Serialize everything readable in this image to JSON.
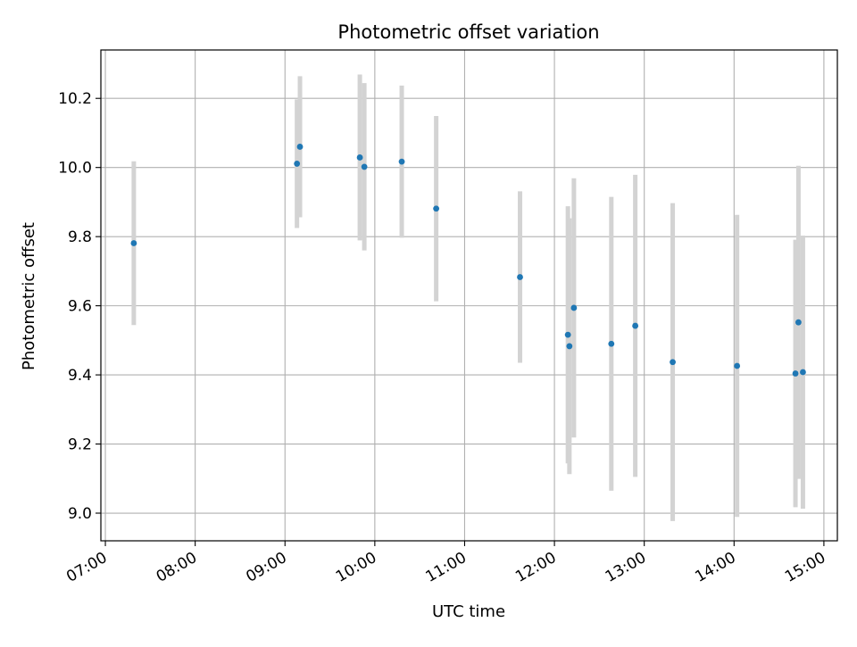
{
  "chart_data": {
    "type": "scatter",
    "title": "Photometric offset variation",
    "xlabel": "UTC time",
    "ylabel": "Photometric offset",
    "grid": true,
    "legend": "none",
    "xlim_hours": [
      6.95,
      15.15
    ],
    "ylim": [
      8.92,
      10.34
    ],
    "x_ticks": [
      {
        "hour": 7,
        "label": "07:00"
      },
      {
        "hour": 8,
        "label": "08:00"
      },
      {
        "hour": 9,
        "label": "09:00"
      },
      {
        "hour": 10,
        "label": "10:00"
      },
      {
        "hour": 11,
        "label": "11:00"
      },
      {
        "hour": 12,
        "label": "12:00"
      },
      {
        "hour": 13,
        "label": "13:00"
      },
      {
        "hour": 14,
        "label": "14:00"
      },
      {
        "hour": 15,
        "label": "15:00"
      }
    ],
    "y_ticks": [
      {
        "value": 9.0,
        "label": "9.0"
      },
      {
        "value": 9.2,
        "label": "9.2"
      },
      {
        "value": 9.4,
        "label": "9.4"
      },
      {
        "value": 9.6,
        "label": "9.6"
      },
      {
        "value": 9.8,
        "label": "9.8"
      },
      {
        "value": 10.0,
        "label": "10.0"
      },
      {
        "value": 10.2,
        "label": "10.2"
      }
    ],
    "colors": {
      "point": "#1f77b4",
      "errorbar": "#d3d3d3",
      "grid": "#b0b0b0",
      "axis": "#000000"
    },
    "points": [
      {
        "time": "07:19",
        "y": 9.781,
        "err": 0.237
      },
      {
        "time": "09:08",
        "y": 10.011,
        "err": 0.186
      },
      {
        "time": "09:10",
        "y": 10.06,
        "err": 0.204
      },
      {
        "time": "09:50",
        "y": 10.029,
        "err": 0.24
      },
      {
        "time": "09:53",
        "y": 10.002,
        "err": 0.242
      },
      {
        "time": "10:18",
        "y": 10.017,
        "err": 0.22
      },
      {
        "time": "10:41",
        "y": 9.881,
        "err": 0.268
      },
      {
        "time": "11:37",
        "y": 9.683,
        "err": 0.248
      },
      {
        "time": "12:09",
        "y": 9.516,
        "err": 0.372
      },
      {
        "time": "12:10",
        "y": 9.483,
        "err": 0.37
      },
      {
        "time": "12:13",
        "y": 9.594,
        "err": 0.375
      },
      {
        "time": "12:38",
        "y": 9.49,
        "err": 0.425
      },
      {
        "time": "12:54",
        "y": 9.542,
        "err": 0.437
      },
      {
        "time": "13:19",
        "y": 9.437,
        "err": 0.46
      },
      {
        "time": "14:02",
        "y": 9.426,
        "err": 0.437
      },
      {
        "time": "14:41",
        "y": 9.404,
        "err": 0.387
      },
      {
        "time": "14:43",
        "y": 9.552,
        "err": 0.453
      },
      {
        "time": "14:46",
        "y": 9.408,
        "err": 0.395
      }
    ]
  }
}
